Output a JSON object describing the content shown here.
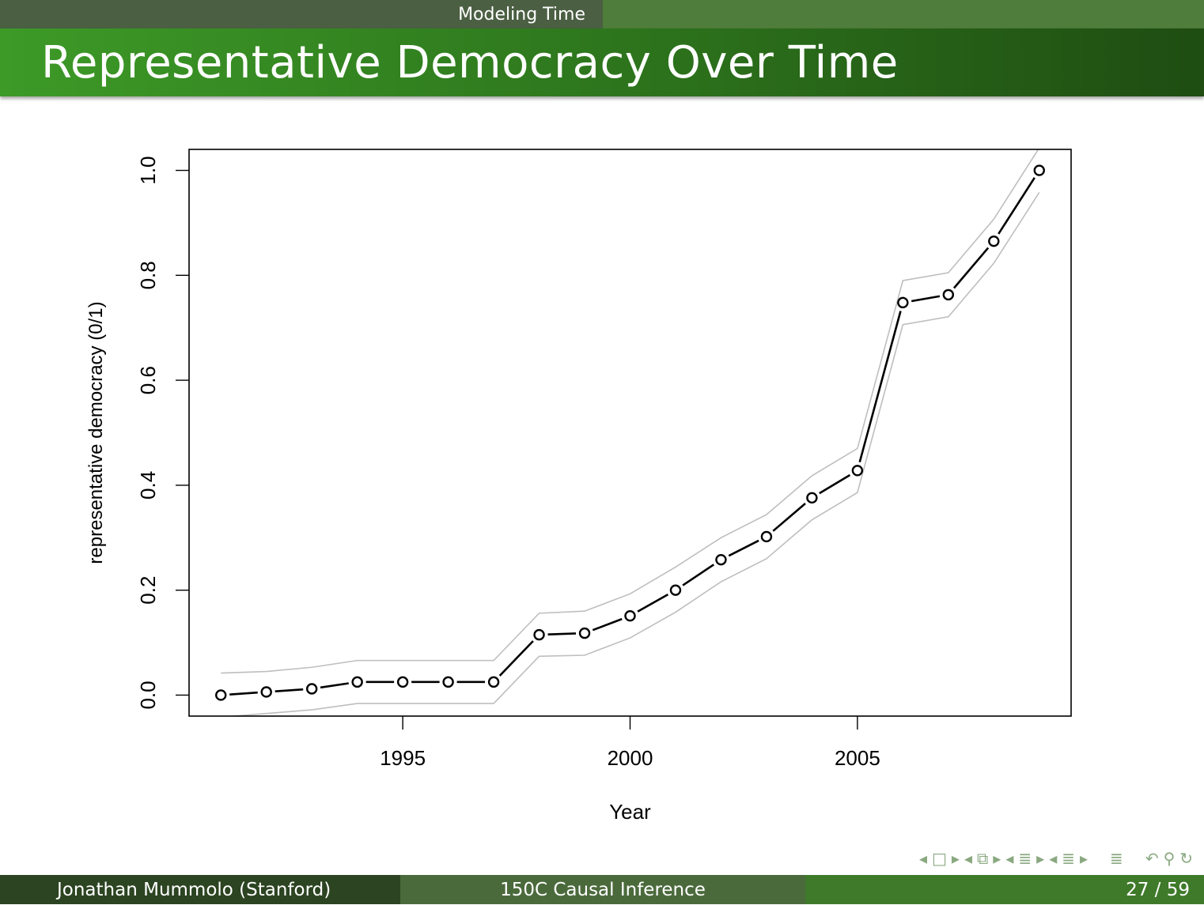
{
  "header": {
    "section": "Modeling Time",
    "title": "Representative Democracy Over Time"
  },
  "footer": {
    "author": "Jonathan Mummolo  (Stanford)",
    "course": "150C Causal Inference",
    "page": "27 / 59"
  },
  "nav_icons": [
    "nav-prev-frame-icon",
    "nav-frame-icon",
    "nav-next-frame-icon",
    "nav-prev-subsection-icon",
    "nav-subsection-icon",
    "nav-next-subsection-icon",
    "nav-prev-section-icon",
    "nav-section-icon",
    "nav-next-section-icon",
    "nav-prev-page-icon",
    "nav-page-icon",
    "nav-next-page-icon",
    "nav-toc-icon",
    "nav-back-icon",
    "nav-search-icon",
    "nav-forward-icon"
  ],
  "chart_data": {
    "type": "line",
    "xlabel": "Year",
    "ylabel": "representative democracy (0/1)",
    "xlim": [
      1990.3,
      2009.7
    ],
    "ylim": [
      -0.04,
      1.04
    ],
    "xticks": [
      1995,
      2000,
      2005
    ],
    "yticks": [
      "0.0",
      "0.2",
      "0.4",
      "0.6",
      "0.8",
      "1.0"
    ],
    "x": [
      1991,
      1992,
      1993,
      1994,
      1995,
      1996,
      1997,
      1998,
      1999,
      2000,
      2001,
      2002,
      2003,
      2004,
      2005,
      2006,
      2007,
      2008,
      2009
    ],
    "series": [
      {
        "values": [
          0.0,
          0.006,
          0.012,
          0.025,
          0.025,
          0.025,
          0.025,
          0.115,
          0.118,
          0.151,
          0.2,
          0.258,
          0.302,
          0.376,
          0.428,
          0.748,
          0.763,
          0.865,
          1.0
        ],
        "style": "dashed-points",
        "color": "#000000"
      },
      {
        "values": [
          0.042,
          0.045,
          0.053,
          0.066,
          0.066,
          0.066,
          0.066,
          0.156,
          0.16,
          0.193,
          0.244,
          0.3,
          0.344,
          0.418,
          0.47,
          0.79,
          0.805,
          0.907,
          1.043
        ],
        "style": "line",
        "color": "#bebebe"
      },
      {
        "values": [
          -0.042,
          -0.035,
          -0.028,
          -0.016,
          -0.016,
          -0.016,
          -0.016,
          0.074,
          0.076,
          0.109,
          0.158,
          0.216,
          0.26,
          0.334,
          0.386,
          0.706,
          0.721,
          0.823,
          0.958
        ],
        "style": "line",
        "color": "#bebebe"
      }
    ],
    "grid": false,
    "legend": "none"
  }
}
